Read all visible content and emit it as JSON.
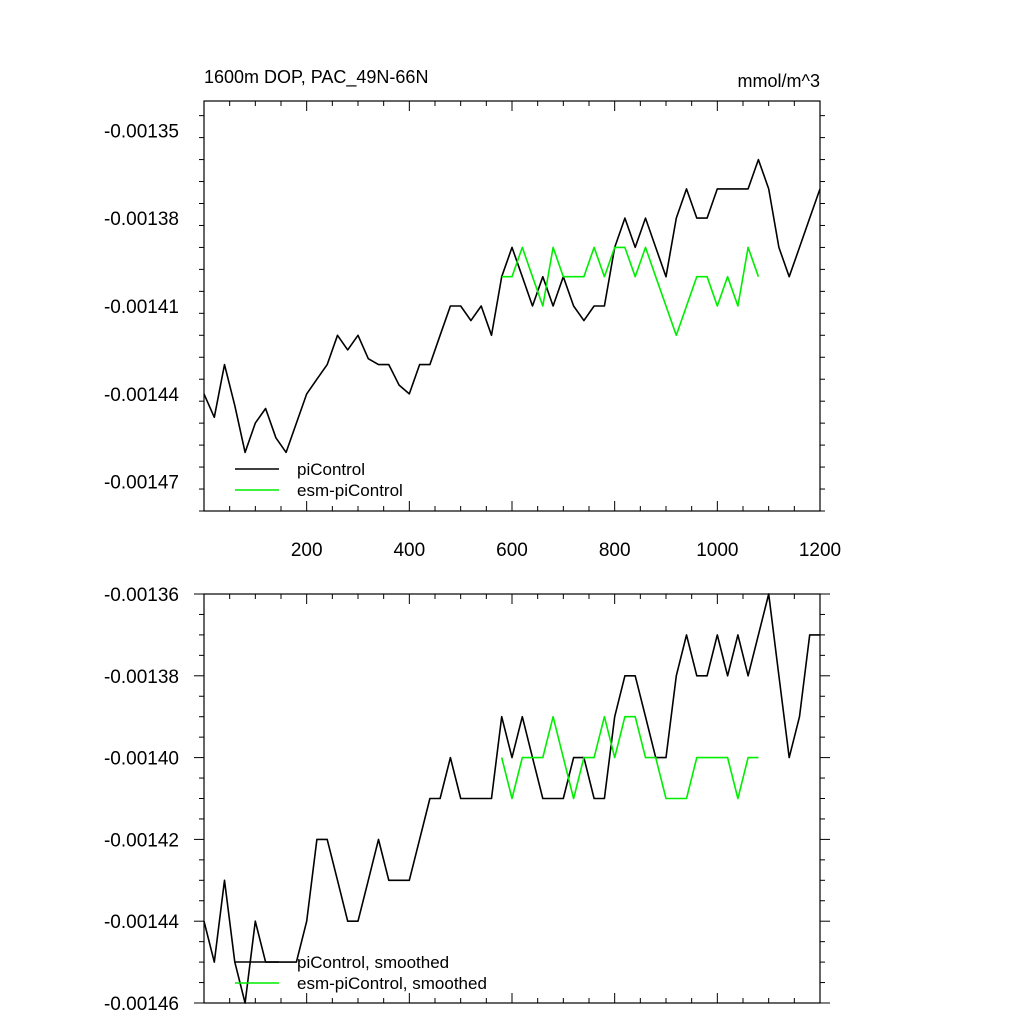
{
  "title_left": "1600m DOP, PAC_49N-66N",
  "title_right": "mmol/m^3",
  "colors": {
    "piControl": "#000000",
    "esm_piControl": "#00ee00"
  },
  "chart_data": [
    {
      "type": "line",
      "xlim": [
        0,
        1200
      ],
      "ylim": [
        -0.00148,
        -0.00134
      ],
      "x_ticks": [
        200,
        400,
        600,
        800,
        1000,
        1200
      ],
      "x_tick_labels": [
        "200",
        "400",
        "600",
        "800",
        "1000",
        "1200"
      ],
      "y_ticks": [
        -0.00135,
        -0.00138,
        -0.00141,
        -0.00144,
        -0.00147
      ],
      "y_tick_labels": [
        "-0.00135",
        "-0.00138",
        "-0.00141",
        "-0.00144",
        "-0.00147"
      ],
      "legend_position": "bottom-left",
      "series": [
        {
          "name": "piControl",
          "color": "#000000",
          "x": [
            0,
            20,
            40,
            60,
            80,
            100,
            120,
            140,
            160,
            180,
            200,
            220,
            240,
            260,
            280,
            300,
            320,
            340,
            360,
            380,
            400,
            420,
            440,
            460,
            480,
            500,
            520,
            540,
            560,
            580,
            600,
            620,
            640,
            660,
            680,
            700,
            720,
            740,
            760,
            780,
            800,
            820,
            840,
            860,
            880,
            900,
            920,
            940,
            960,
            980,
            1000,
            1020,
            1040,
            1060,
            1080,
            1100,
            1120,
            1140,
            1160,
            1180,
            1200
          ],
          "y": [
            -0.00144,
            -0.001448,
            -0.00143,
            -0.001444,
            -0.00146,
            -0.00145,
            -0.001445,
            -0.001455,
            -0.00146,
            -0.00145,
            -0.00144,
            -0.001435,
            -0.00143,
            -0.00142,
            -0.001425,
            -0.00142,
            -0.001428,
            -0.00143,
            -0.00143,
            -0.001437,
            -0.00144,
            -0.00143,
            -0.00143,
            -0.00142,
            -0.00141,
            -0.00141,
            -0.001415,
            -0.00141,
            -0.00142,
            -0.0014,
            -0.00139,
            -0.0014,
            -0.00141,
            -0.0014,
            -0.00141,
            -0.0014,
            -0.00141,
            -0.001415,
            -0.00141,
            -0.00141,
            -0.00139,
            -0.00138,
            -0.00139,
            -0.00138,
            -0.00139,
            -0.0014,
            -0.00138,
            -0.00137,
            -0.00138,
            -0.00138,
            -0.00137,
            -0.00137,
            -0.00137,
            -0.00137,
            -0.00136,
            -0.00137,
            -0.00139,
            -0.0014,
            -0.00139,
            -0.00138,
            -0.00137
          ]
        },
        {
          "name": "esm-piControl",
          "color": "#00ee00",
          "x": [
            580,
            600,
            620,
            640,
            660,
            680,
            700,
            720,
            740,
            760,
            780,
            800,
            820,
            840,
            860,
            880,
            900,
            920,
            940,
            960,
            980,
            1000,
            1020,
            1040,
            1060,
            1080
          ],
          "y": [
            -0.0014,
            -0.0014,
            -0.00139,
            -0.0014,
            -0.00141,
            -0.00139,
            -0.0014,
            -0.0014,
            -0.0014,
            -0.00139,
            -0.0014,
            -0.00139,
            -0.00139,
            -0.0014,
            -0.00139,
            -0.0014,
            -0.00141,
            -0.00142,
            -0.00141,
            -0.0014,
            -0.0014,
            -0.00141,
            -0.0014,
            -0.00141,
            -0.00139,
            -0.0014
          ]
        }
      ]
    },
    {
      "type": "line",
      "xlim": [
        0,
        1200
      ],
      "ylim": [
        -0.00146,
        -0.00136
      ],
      "x_ticks": [
        200,
        400,
        600,
        800,
        1000,
        1200
      ],
      "y_ticks": [
        -0.00136,
        -0.00138,
        -0.0014,
        -0.00142,
        -0.00144,
        -0.00146
      ],
      "y_tick_labels": [
        "-0.00136",
        "-0.00138",
        "-0.00140",
        "-0.00142",
        "-0.00144",
        "-0.00146"
      ],
      "legend_position": "bottom-left",
      "series": [
        {
          "name": "piControl, smoothed",
          "color": "#000000",
          "x": [
            0,
            20,
            40,
            60,
            80,
            100,
            120,
            140,
            160,
            180,
            200,
            220,
            240,
            260,
            280,
            300,
            320,
            340,
            360,
            380,
            400,
            420,
            440,
            460,
            480,
            500,
            520,
            540,
            560,
            580,
            600,
            620,
            640,
            660,
            680,
            700,
            720,
            740,
            760,
            780,
            800,
            820,
            840,
            860,
            880,
            900,
            920,
            940,
            960,
            980,
            1000,
            1020,
            1040,
            1060,
            1080,
            1100,
            1120,
            1140,
            1160,
            1180,
            1200
          ],
          "y": [
            -0.00144,
            -0.00145,
            -0.00143,
            -0.00145,
            -0.00146,
            -0.00144,
            -0.00145,
            -0.00145,
            -0.00145,
            -0.00145,
            -0.00144,
            -0.00142,
            -0.00142,
            -0.00143,
            -0.00144,
            -0.00144,
            -0.00143,
            -0.00142,
            -0.00143,
            -0.00143,
            -0.00143,
            -0.00142,
            -0.00141,
            -0.00141,
            -0.0014,
            -0.00141,
            -0.00141,
            -0.00141,
            -0.00141,
            -0.00139,
            -0.0014,
            -0.00139,
            -0.0014,
            -0.00141,
            -0.00141,
            -0.00141,
            -0.0014,
            -0.0014,
            -0.00141,
            -0.00141,
            -0.00139,
            -0.00138,
            -0.00138,
            -0.00139,
            -0.0014,
            -0.0014,
            -0.00138,
            -0.00137,
            -0.00138,
            -0.00138,
            -0.00137,
            -0.00138,
            -0.00137,
            -0.00138,
            -0.00137,
            -0.00136,
            -0.00138,
            -0.0014,
            -0.00139,
            -0.00137,
            -0.00137
          ]
        },
        {
          "name": "esm-piControl, smoothed",
          "color": "#00ee00",
          "x": [
            580,
            600,
            620,
            640,
            660,
            680,
            700,
            720,
            740,
            760,
            780,
            800,
            820,
            840,
            860,
            880,
            900,
            920,
            940,
            960,
            980,
            1000,
            1020,
            1040,
            1060,
            1080
          ],
          "y": [
            -0.0014,
            -0.00141,
            -0.0014,
            -0.0014,
            -0.0014,
            -0.00139,
            -0.0014,
            -0.00141,
            -0.0014,
            -0.0014,
            -0.00139,
            -0.0014,
            -0.00139,
            -0.00139,
            -0.0014,
            -0.0014,
            -0.00141,
            -0.00141,
            -0.00141,
            -0.0014,
            -0.0014,
            -0.0014,
            -0.0014,
            -0.00141,
            -0.0014,
            -0.0014
          ]
        }
      ]
    }
  ]
}
